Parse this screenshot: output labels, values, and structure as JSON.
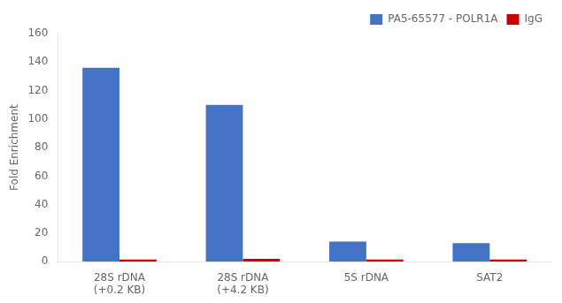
{
  "chart_data": {
    "type": "bar",
    "categories": [
      "28S rDNA\n(+0.2 KB)",
      "28S rDNA\n(+4.2 KB)",
      "5S rDNA",
      "SAT2"
    ],
    "series": [
      {
        "name": "PA5-65577 - POLR1A",
        "color": "#4472C4",
        "values": [
          136,
          110,
          14,
          13
        ]
      },
      {
        "name": "IgG",
        "color": "#CC0000",
        "values": [
          1.5,
          2,
          1.5,
          1.5
        ]
      }
    ],
    "ylabel": "Fold Enrichment",
    "ylim": [
      0,
      160
    ],
    "yticks": [
      0,
      20,
      40,
      60,
      80,
      100,
      120,
      140,
      160
    ],
    "grid": false,
    "legend": "upper right"
  }
}
